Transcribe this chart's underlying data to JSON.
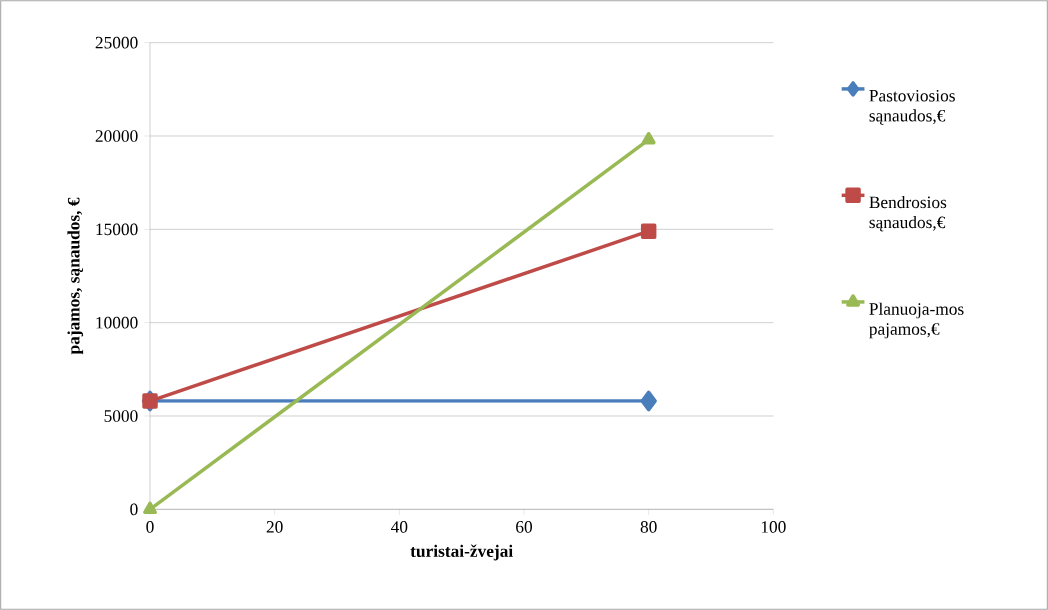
{
  "chart_data": {
    "type": "line",
    "xlabel": "turistai-žvejai",
    "ylabel": "pajamos, sąnaudos, €",
    "x": [
      0,
      80
    ],
    "xlim": [
      0,
      100
    ],
    "xticks": [
      0,
      20,
      40,
      60,
      80,
      100
    ],
    "ylim": [
      0,
      25000
    ],
    "yticks": [
      0,
      5000,
      10000,
      15000,
      20000,
      25000
    ],
    "grid": "y",
    "legend": "right",
    "series": [
      {
        "name": "Pastoviosios sąnaudos,€",
        "color": "#4a7ebb",
        "marker": "diamond",
        "values": [
          5800,
          5800
        ]
      },
      {
        "name": "Bendrosios sąnaudos,€",
        "color": "#be4b48",
        "marker": "square",
        "values": [
          5800,
          14900
        ]
      },
      {
        "name": "Planuoja-mos pajamos,€",
        "color": "#98b954",
        "marker": "triangle",
        "values": [
          0,
          19800
        ]
      }
    ]
  }
}
